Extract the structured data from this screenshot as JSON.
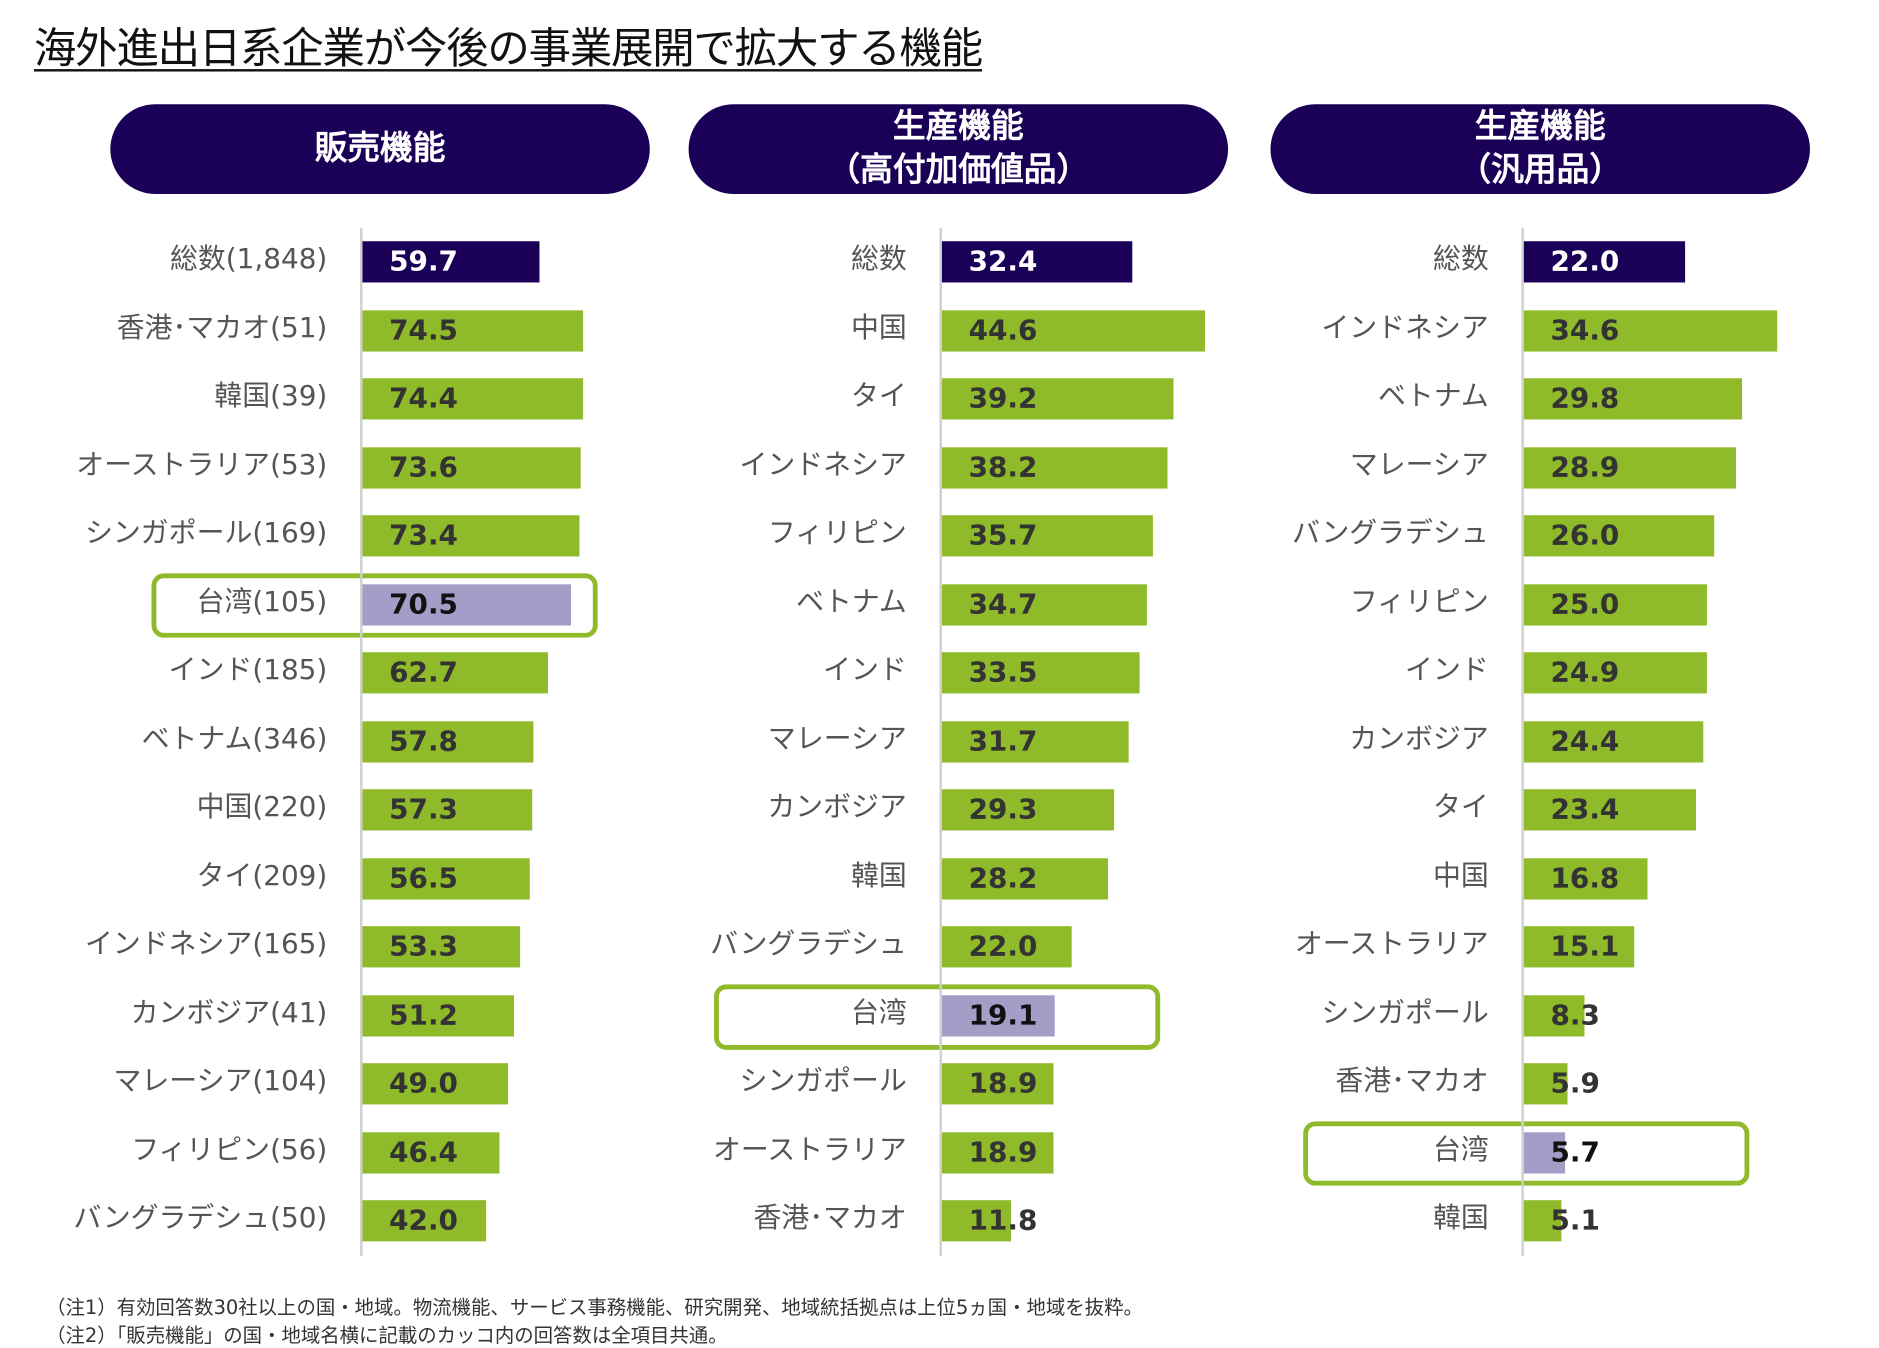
{
  "title": "海外進出日系企業が今後の事業展開で拡大する機能",
  "colors": {
    "total": "#1a0057",
    "normal": "#8fba2a",
    "taiwan": "#a59cc8",
    "pill": "#1a0057"
  },
  "chart_data": [
    {
      "type": "bar",
      "orientation": "horizontal",
      "title_lines": [
        "販売機能"
      ],
      "xlim": [
        0,
        100
      ],
      "categories": [
        "総数(1,848)",
        "香港･マカオ(51)",
        "韓国(39)",
        "オーストラリア(53)",
        "シンガポール(169)",
        "台湾(105)",
        "インド(185)",
        "ベトナム(346)",
        "中国(220)",
        "タイ(209)",
        "インドネシア(165)",
        "カンボジア(41)",
        "マレーシア(104)",
        "フィリピン(56)",
        "バングラデシュ(50)"
      ],
      "values": [
        59.7,
        74.5,
        74.4,
        73.6,
        73.4,
        70.5,
        62.7,
        57.8,
        57.3,
        56.5,
        53.3,
        51.2,
        49.0,
        46.4,
        42.0
      ],
      "labels": [
        "59.7",
        "74.5",
        "74.4",
        "73.6",
        "73.4",
        "70.5",
        "62.7",
        "57.8",
        "57.3",
        "56.5",
        "53.3",
        "51.2",
        "49.0",
        "46.4",
        "42.0"
      ],
      "highlight": "台湾(105)"
    },
    {
      "type": "bar",
      "orientation": "horizontal",
      "title_lines": [
        "生産機能",
        "（高付加価値品）"
      ],
      "xlim": [
        0,
        50
      ],
      "categories": [
        "総数",
        "中国",
        "タイ",
        "インドネシア",
        "フィリピン",
        "ベトナム",
        "インド",
        "マレーシア",
        "カンボジア",
        "韓国",
        "バングラデシュ",
        "台湾",
        "シンガポール",
        "オーストラリア",
        "香港･マカオ"
      ],
      "values": [
        32.4,
        44.6,
        39.2,
        38.2,
        35.7,
        34.7,
        33.5,
        31.7,
        29.3,
        28.2,
        22.0,
        19.1,
        18.9,
        18.9,
        11.8
      ],
      "labels": [
        "32.4",
        "44.6",
        "39.2",
        "38.2",
        "35.7",
        "34.7",
        "33.5",
        "31.7",
        "29.3",
        "28.2",
        "22.0",
        "19.1",
        "18.9",
        "18.9",
        "11.8"
      ],
      "highlight": "台湾"
    },
    {
      "type": "bar",
      "orientation": "horizontal",
      "title_lines": [
        "生産機能",
        "（汎用品）"
      ],
      "xlim": [
        0,
        40
      ],
      "categories": [
        "総数",
        "インドネシア",
        "ベトナム",
        "マレーシア",
        "バングラデシュ",
        "フィリピン",
        "インド",
        "カンボジア",
        "タイ",
        "中国",
        "オーストラリア",
        "シンガポール",
        "香港･マカオ",
        "台湾",
        "韓国"
      ],
      "values": [
        22.0,
        34.6,
        29.8,
        28.9,
        26.0,
        25.0,
        24.9,
        24.4,
        23.4,
        16.8,
        15.1,
        8.3,
        5.9,
        5.7,
        5.1
      ],
      "labels": [
        "22.0",
        "34.6",
        "29.8",
        "28.9",
        "26.0",
        "25.0",
        "24.9",
        "24.4",
        "23.4",
        "16.8",
        "15.1",
        "8.3",
        "5.9",
        "5.7",
        "5.1"
      ],
      "highlight": "台湾"
    }
  ],
  "notes": [
    "（注1）有効回答数30社以上の国・地域。物流機能、サービス事務機能、研究開発、地域統括拠点は上位5ヵ国・地域を抜粋。",
    "（注2）「販売機能」の国・地域名横に記載のカッコ内の回答数は全項目共通。"
  ]
}
